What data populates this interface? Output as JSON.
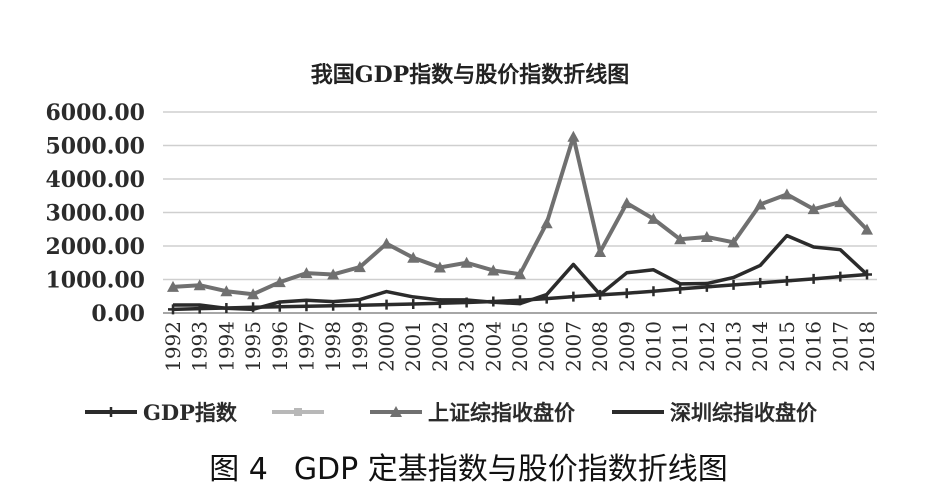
{
  "caption": {
    "label": "图 4",
    "text": "GDP 定基指数与股价指数折线图"
  },
  "chart_data": {
    "type": "line",
    "title": "我国GDP指数与股价指数折线图",
    "xlabel": "",
    "ylabel": "",
    "ylim": [
      0,
      6000
    ],
    "yticks": [
      "0.00",
      "1000.00",
      "2000.00",
      "3000.00",
      "4000.00",
      "5000.00",
      "6000.00"
    ],
    "grid": true,
    "legend_position": "bottom",
    "categories": [
      "1992",
      "1993",
      "1994",
      "1995",
      "1996",
      "1997",
      "1998",
      "1999",
      "2000",
      "2001",
      "2002",
      "2003",
      "2004",
      "2005",
      "2006",
      "2007",
      "2008",
      "2009",
      "2010",
      "2011",
      "2012",
      "2013",
      "2014",
      "2015",
      "2016",
      "2017",
      "2018"
    ],
    "series": [
      {
        "name": "GDP指数",
        "color": "#2b2b2b",
        "marker": "plus",
        "values": [
          110,
          130,
          150,
          170,
          185,
          200,
          215,
          230,
          250,
          270,
          290,
          315,
          345,
          380,
          430,
          490,
          540,
          590,
          650,
          720,
          780,
          840,
          900,
          960,
          1020,
          1085,
          1150
        ]
      },
      {
        "name": "",
        "color": "#b8b8b8",
        "marker": "square",
        "values": [
          null,
          null,
          null,
          null,
          null,
          null,
          null,
          null,
          null,
          null,
          null,
          null,
          null,
          null,
          null,
          null,
          null,
          null,
          null,
          null,
          null,
          null,
          null,
          null,
          null,
          null,
          null
        ]
      },
      {
        "name": "上证综指收盘价",
        "color": "#707070",
        "marker": "triangle",
        "values": [
          780,
          830,
          650,
          560,
          920,
          1190,
          1150,
          1370,
          2070,
          1650,
          1360,
          1500,
          1270,
          1160,
          2680,
          5260,
          1820,
          3280,
          2810,
          2200,
          2270,
          2110,
          3240,
          3540,
          3100,
          3310,
          2490
        ]
      },
      {
        "name": "深圳综指收盘价",
        "color": "#2b2b2b",
        "marker": "none",
        "values": [
          240,
          240,
          140,
          110,
          330,
          380,
          340,
          400,
          640,
          480,
          390,
          390,
          320,
          280,
          550,
          1450,
          550,
          1200,
          1290,
          870,
          880,
          1060,
          1420,
          2310,
          1970,
          1890,
          1150
        ]
      }
    ]
  }
}
